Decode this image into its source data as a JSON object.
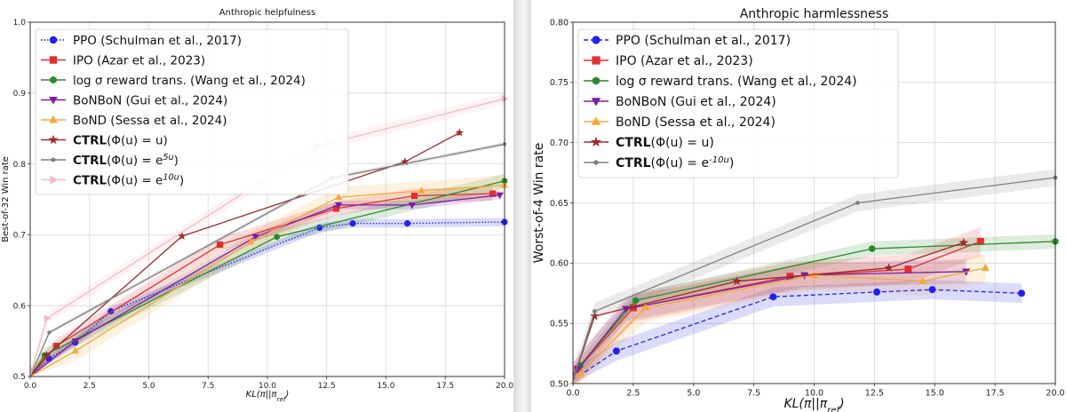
{
  "chart_data": [
    {
      "type": "line",
      "title": "Anthropic helpfulness",
      "xlabel": "KL(π||π",
      "xlabel_sub": "ref",
      "xlabel_end": ")",
      "ylabel": "Best-of-32 Win rate",
      "xlim": [
        0,
        20
      ],
      "ylim": [
        0.5,
        1.0
      ],
      "xticks": [
        0.0,
        2.5,
        5.0,
        7.5,
        10.0,
        12.5,
        15.0,
        17.5,
        20.0
      ],
      "xtick_labels": [
        "0.0",
        "2.5",
        "5.0",
        "7.5",
        "10.0",
        "12.5",
        "15.0",
        "17.5",
        "20.0"
      ],
      "yticks": [
        0.5,
        0.6,
        0.7,
        0.8,
        0.9,
        1.0
      ],
      "ytick_labels": [
        "0.5",
        "0.6",
        "0.7",
        "0.8",
        "0.9",
        "1.0"
      ],
      "grid": true,
      "legend_position": "top-left",
      "series": [
        {
          "name": "PPO (Schulman et al., 2017)",
          "color": "#2222ee",
          "marker": "circle",
          "dash": "dot",
          "band": 0.006,
          "x": [
            0,
            0.8,
            1.9,
            3.4,
            12.2,
            13.6,
            15.9,
            20.0
          ],
          "y": [
            0.5,
            0.525,
            0.548,
            0.592,
            0.71,
            0.716,
            0.716,
            0.718
          ]
        },
        {
          "name": "IPO (Azar et al., 2023)",
          "color": "#e03030",
          "marker": "square",
          "dash": "solid",
          "band": 0.01,
          "x": [
            0,
            1.1,
            8.0,
            12.9,
            16.2,
            19.5
          ],
          "y": [
            0.5,
            0.543,
            0.686,
            0.737,
            0.755,
            0.758
          ]
        },
        {
          "name": "log σ reward trans. (Wang et al., 2024)",
          "color": "#2a8a2a",
          "marker": "hexagon",
          "dash": "solid",
          "band": 0.01,
          "x": [
            0,
            0.6,
            10.4,
            20.0
          ],
          "y": [
            0.5,
            0.53,
            0.697,
            0.776
          ]
        },
        {
          "name": "BoNBoN (Gui et al., 2024)",
          "color": "#7a1fa2",
          "marker": "triangle-down",
          "dash": "solid",
          "band": 0.006,
          "x": [
            0,
            1.9,
            9.5,
            13.0,
            16.1,
            19.8
          ],
          "y": [
            0.5,
            0.55,
            0.697,
            0.742,
            0.742,
            0.756
          ]
        },
        {
          "name": "BoND (Sessa et al., 2024)",
          "color": "#f2a93b",
          "marker": "triangle-up",
          "dash": "solid",
          "band": 0.014,
          "x": [
            0,
            1.9,
            9.3,
            13.0,
            16.5,
            20.0
          ],
          "y": [
            0.5,
            0.536,
            0.69,
            0.753,
            0.762,
            0.77
          ]
        },
        {
          "name": "CTRL(Φ(u) = u)",
          "color": "#9e2a2a",
          "marker": "star",
          "dash": "solid",
          "band": 0,
          "x": [
            0,
            0.7,
            6.4,
            15.8,
            18.1
          ],
          "y": [
            0.5,
            0.53,
            0.698,
            0.803,
            0.844
          ]
        },
        {
          "name": "CTRL(Φ(u) = e^{5u})",
          "color": "#7f7f7f",
          "marker": "dot",
          "dash": "solid",
          "band": 0.003,
          "x": [
            0,
            0.8,
            12.7,
            20.0
          ],
          "y": [
            0.5,
            0.562,
            0.78,
            0.828
          ]
        },
        {
          "name": "CTRL(Φ(u) = e^{10u})",
          "color": "#f7b6c2",
          "marker": "triangle-right",
          "dash": "solid",
          "band": 0.008,
          "x": [
            0,
            0.7,
            12.1,
            20.0
          ],
          "y": [
            0.5,
            0.582,
            0.825,
            0.892
          ]
        }
      ],
      "legend": [
        "PPO (Schulman et al., 2017)",
        "IPO (Azar et al., 2023)",
        "log σ reward trans. (Wang et al., 2024)",
        "BoNBoN (Gui et al., 2024)",
        "BoND (Sessa et al., 2024)",
        "CTRL(Φ(u) = u)",
        "CTRL(Φ(u) = e^{5u})",
        "CTRL(Φ(u) = e^{10u})"
      ]
    },
    {
      "type": "line",
      "title": "Anthropic harmlessness",
      "xlabel": "KL(π||π",
      "xlabel_sub": "ref",
      "xlabel_end": ")",
      "ylabel": "Worst-of-4 Win rate",
      "xlim": [
        0,
        20
      ],
      "ylim": [
        0.5,
        0.8
      ],
      "xticks": [
        0.0,
        2.5,
        5.0,
        7.5,
        10.0,
        12.5,
        15.0,
        17.5,
        20.0
      ],
      "xtick_labels": [
        "0.0",
        "2.5",
        "5.0",
        "7.5",
        "10.0",
        "12.5",
        "15.0",
        "17.5",
        "20.0"
      ],
      "yticks": [
        0.5,
        0.55,
        0.6,
        0.65,
        0.7,
        0.75,
        0.8
      ],
      "ytick_labels": [
        "0.50",
        "0.55",
        "0.60",
        "0.65",
        "0.70",
        "0.75",
        "0.80"
      ],
      "grid": true,
      "legend_position": "top-left",
      "series": [
        {
          "name": "PPO (Schulman et al., 2017)",
          "color": "#2222ee",
          "marker": "circle",
          "dash": "dash",
          "band": 0.008,
          "x": [
            0,
            1.8,
            8.3,
            12.6,
            14.9,
            18.6
          ],
          "y": [
            0.503,
            0.527,
            0.572,
            0.576,
            0.578,
            0.575
          ]
        },
        {
          "name": "IPO (Azar et al., 2023)",
          "color": "#e03030",
          "marker": "square",
          "dash": "solid",
          "band": 0.012,
          "x": [
            0,
            0.2,
            2.5,
            9.0,
            13.9,
            16.9
          ],
          "y": [
            0.505,
            0.512,
            0.563,
            0.589,
            0.595,
            0.618
          ]
        },
        {
          "name": "log σ reward trans. (Wang et al., 2024)",
          "color": "#2a8a2a",
          "marker": "hexagon",
          "dash": "solid",
          "band": 0.006,
          "x": [
            0,
            0.3,
            2.6,
            12.4,
            20.0
          ],
          "y": [
            0.507,
            0.515,
            0.569,
            0.612,
            0.618
          ]
        },
        {
          "name": "BoNBoN (Gui et al., 2024)",
          "color": "#7a1fa2",
          "marker": "triangle-down",
          "dash": "solid",
          "band": 0.01,
          "x": [
            0,
            0.2,
            2.2,
            9.6,
            16.3
          ],
          "y": [
            0.507,
            0.512,
            0.562,
            0.59,
            0.593
          ]
        },
        {
          "name": "BoND (Sessa et al., 2024)",
          "color": "#f2a93b",
          "marker": "triangle-up",
          "dash": "solid",
          "band": 0.012,
          "x": [
            0,
            0.3,
            3.0,
            10.0,
            14.5,
            17.1
          ],
          "y": [
            0.502,
            0.508,
            0.563,
            0.59,
            0.585,
            0.596
          ]
        },
        {
          "name": "CTRL(Φ(u) = u)",
          "color": "#9e2a2a",
          "marker": "star",
          "dash": "solid",
          "band": 0,
          "x": [
            0,
            0.9,
            6.8,
            13.1,
            16.2
          ],
          "y": [
            0.503,
            0.556,
            0.585,
            0.596,
            0.617
          ]
        },
        {
          "name": "CTRL(Φ(u) = e^{-10u})",
          "color": "#7f7f7f",
          "marker": "dot",
          "dash": "solid",
          "band": 0.007,
          "x": [
            0,
            0.9,
            11.8,
            20.0
          ],
          "y": [
            0.503,
            0.56,
            0.65,
            0.671
          ]
        }
      ],
      "legend": [
        "PPO (Schulman et al., 2017)",
        "IPO (Azar et al., 2023)",
        "log σ reward trans. (Wang et al., 2024)",
        "BoNBoN (Gui et al., 2024)",
        "BoND (Sessa et al., 2024)",
        "CTRL(Φ(u) = u)",
        "CTRL(Φ(u) = e^{-10u})"
      ]
    }
  ]
}
